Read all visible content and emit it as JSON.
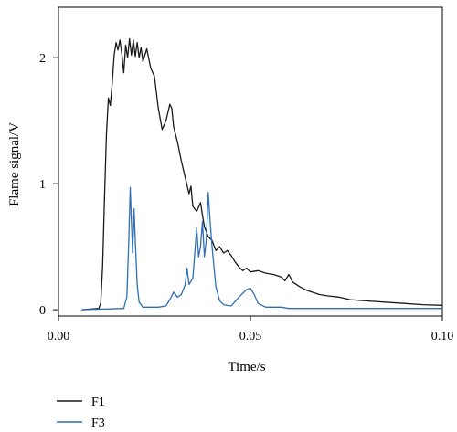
{
  "chart_data": {
    "type": "line",
    "xlabel": "Time/s",
    "ylabel": "Flame signal/V",
    "xlim": [
      0,
      0.1
    ],
    "ylim": [
      -0.05,
      2.4
    ],
    "x_ticks": [
      0.0,
      0.05,
      0.1
    ],
    "x_tick_labels": [
      "0.00",
      "0.05",
      "0.10"
    ],
    "y_ticks": [
      0,
      1,
      2
    ],
    "y_tick_labels": [
      "0",
      "1",
      "2"
    ],
    "grid": false,
    "legend_position": "bottom-left",
    "series": [
      {
        "name": "F1",
        "color": "#1a1a1a",
        "points": [
          [
            0.006,
            0.0
          ],
          [
            0.0105,
            0.01
          ],
          [
            0.011,
            0.05
          ],
          [
            0.0115,
            0.35
          ],
          [
            0.012,
            0.9
          ],
          [
            0.0125,
            1.4
          ],
          [
            0.013,
            1.68
          ],
          [
            0.0135,
            1.62
          ],
          [
            0.014,
            1.8
          ],
          [
            0.0145,
            2.02
          ],
          [
            0.015,
            2.12
          ],
          [
            0.0155,
            2.06
          ],
          [
            0.016,
            2.14
          ],
          [
            0.0165,
            2.03
          ],
          [
            0.017,
            1.88
          ],
          [
            0.0175,
            2.1
          ],
          [
            0.018,
            2.0
          ],
          [
            0.0185,
            2.15
          ],
          [
            0.019,
            2.02
          ],
          [
            0.0195,
            2.14
          ],
          [
            0.02,
            2.01
          ],
          [
            0.0205,
            2.12
          ],
          [
            0.021,
            2.0
          ],
          [
            0.0215,
            2.08
          ],
          [
            0.022,
            1.97
          ],
          [
            0.023,
            2.07
          ],
          [
            0.024,
            1.92
          ],
          [
            0.025,
            1.85
          ],
          [
            0.026,
            1.6
          ],
          [
            0.027,
            1.43
          ],
          [
            0.028,
            1.5
          ],
          [
            0.029,
            1.63
          ],
          [
            0.0295,
            1.6
          ],
          [
            0.03,
            1.45
          ],
          [
            0.031,
            1.33
          ],
          [
            0.032,
            1.18
          ],
          [
            0.033,
            1.05
          ],
          [
            0.034,
            0.92
          ],
          [
            0.0345,
            0.98
          ],
          [
            0.035,
            0.82
          ],
          [
            0.036,
            0.78
          ],
          [
            0.037,
            0.85
          ],
          [
            0.0375,
            0.75
          ],
          [
            0.038,
            0.66
          ],
          [
            0.039,
            0.58
          ],
          [
            0.04,
            0.55
          ],
          [
            0.041,
            0.47
          ],
          [
            0.042,
            0.5
          ],
          [
            0.043,
            0.45
          ],
          [
            0.044,
            0.47
          ],
          [
            0.045,
            0.43
          ],
          [
            0.046,
            0.38
          ],
          [
            0.047,
            0.34
          ],
          [
            0.048,
            0.31
          ],
          [
            0.049,
            0.33
          ],
          [
            0.05,
            0.3
          ],
          [
            0.052,
            0.31
          ],
          [
            0.054,
            0.29
          ],
          [
            0.056,
            0.28
          ],
          [
            0.058,
            0.26
          ],
          [
            0.059,
            0.23
          ],
          [
            0.06,
            0.28
          ],
          [
            0.061,
            0.22
          ],
          [
            0.063,
            0.18
          ],
          [
            0.065,
            0.15
          ],
          [
            0.068,
            0.12
          ],
          [
            0.07,
            0.11
          ],
          [
            0.073,
            0.1
          ],
          [
            0.076,
            0.08
          ],
          [
            0.08,
            0.07
          ],
          [
            0.085,
            0.06
          ],
          [
            0.09,
            0.05
          ],
          [
            0.095,
            0.04
          ],
          [
            0.1,
            0.035
          ]
        ]
      },
      {
        "name": "F3",
        "color": "#2e6fb5",
        "points": [
          [
            0.006,
            0.0
          ],
          [
            0.017,
            0.01
          ],
          [
            0.0178,
            0.1
          ],
          [
            0.0183,
            0.55
          ],
          [
            0.0187,
            0.97
          ],
          [
            0.019,
            0.7
          ],
          [
            0.0193,
            0.45
          ],
          [
            0.0197,
            0.8
          ],
          [
            0.02,
            0.55
          ],
          [
            0.0205,
            0.2
          ],
          [
            0.021,
            0.06
          ],
          [
            0.022,
            0.02
          ],
          [
            0.026,
            0.02
          ],
          [
            0.028,
            0.03
          ],
          [
            0.029,
            0.08
          ],
          [
            0.03,
            0.14
          ],
          [
            0.031,
            0.1
          ],
          [
            0.032,
            0.12
          ],
          [
            0.033,
            0.2
          ],
          [
            0.0335,
            0.33
          ],
          [
            0.034,
            0.2
          ],
          [
            0.035,
            0.25
          ],
          [
            0.0355,
            0.45
          ],
          [
            0.036,
            0.65
          ],
          [
            0.0365,
            0.42
          ],
          [
            0.037,
            0.5
          ],
          [
            0.0375,
            0.7
          ],
          [
            0.038,
            0.42
          ],
          [
            0.0385,
            0.55
          ],
          [
            0.039,
            0.93
          ],
          [
            0.0395,
            0.7
          ],
          [
            0.04,
            0.5
          ],
          [
            0.041,
            0.18
          ],
          [
            0.042,
            0.07
          ],
          [
            0.043,
            0.04
          ],
          [
            0.045,
            0.03
          ],
          [
            0.047,
            0.1
          ],
          [
            0.049,
            0.16
          ],
          [
            0.05,
            0.17
          ],
          [
            0.051,
            0.12
          ],
          [
            0.052,
            0.05
          ],
          [
            0.054,
            0.02
          ],
          [
            0.058,
            0.02
          ],
          [
            0.06,
            0.01
          ],
          [
            0.1,
            0.01
          ]
        ]
      }
    ]
  }
}
